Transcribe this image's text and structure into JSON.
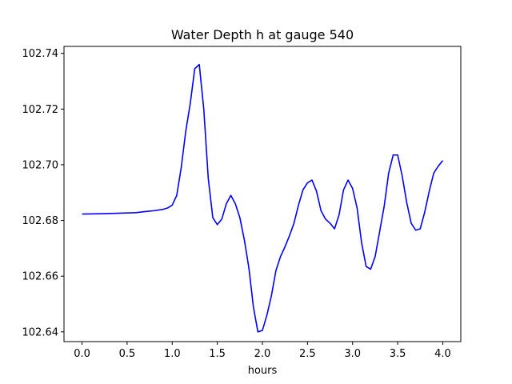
{
  "chart_data": {
    "type": "line",
    "title": "Water Depth h at gauge 540",
    "xlabel": "hours",
    "ylabel": "",
    "xlim": [
      -0.2,
      4.2
    ],
    "ylim": [
      102.6365,
      102.7425
    ],
    "xticks": [
      0.0,
      0.5,
      1.0,
      1.5,
      2.0,
      2.5,
      3.0,
      3.5,
      4.0
    ],
    "xtick_labels": [
      "0.0",
      "0.5",
      "1.0",
      "1.5",
      "2.0",
      "2.5",
      "3.0",
      "3.5",
      "4.0"
    ],
    "yticks": [
      102.64,
      102.66,
      102.68,
      102.7,
      102.72,
      102.74
    ],
    "ytick_labels": [
      "102.64",
      "102.66",
      "102.68",
      "102.70",
      "102.72",
      "102.74"
    ],
    "grid": false,
    "series": [
      {
        "color": "#0000ff",
        "x": [
          0.0,
          0.2,
          0.4,
          0.6,
          0.7,
          0.8,
          0.9,
          0.95,
          1.0,
          1.05,
          1.1,
          1.15,
          1.2,
          1.25,
          1.3,
          1.35,
          1.4,
          1.45,
          1.5,
          1.55,
          1.6,
          1.65,
          1.7,
          1.75,
          1.8,
          1.85,
          1.9,
          1.95,
          2.0,
          2.05,
          2.1,
          2.15,
          2.2,
          2.25,
          2.3,
          2.35,
          2.4,
          2.45,
          2.5,
          2.55,
          2.6,
          2.65,
          2.7,
          2.75,
          2.8,
          2.85,
          2.9,
          2.95,
          3.0,
          3.05,
          3.1,
          3.15,
          3.2,
          3.25,
          3.3,
          3.35,
          3.4,
          3.45,
          3.5,
          3.55,
          3.6,
          3.65,
          3.7,
          3.75,
          3.8,
          3.85,
          3.9,
          3.95,
          4.0
        ],
        "y": [
          102.6823,
          102.6824,
          102.6826,
          102.6828,
          102.6832,
          102.6835,
          102.684,
          102.6845,
          102.6855,
          102.689,
          102.699,
          102.712,
          102.722,
          102.7345,
          102.736,
          102.72,
          102.695,
          102.681,
          102.6785,
          102.6805,
          102.686,
          102.689,
          102.686,
          102.681,
          102.673,
          102.663,
          102.649,
          102.64,
          102.6405,
          102.646,
          102.653,
          102.662,
          102.667,
          102.6705,
          102.6745,
          102.679,
          102.6855,
          102.691,
          102.6935,
          102.6945,
          102.6905,
          102.6835,
          102.6805,
          102.679,
          102.677,
          102.682,
          102.691,
          102.6945,
          102.6915,
          102.6845,
          102.672,
          102.6635,
          102.6625,
          102.667,
          102.676,
          102.685,
          102.697,
          102.7035,
          102.7035,
          102.696,
          102.6865,
          102.679,
          102.6765,
          102.677,
          102.683,
          102.6905,
          102.697,
          102.6995,
          102.7015
        ]
      }
    ]
  }
}
